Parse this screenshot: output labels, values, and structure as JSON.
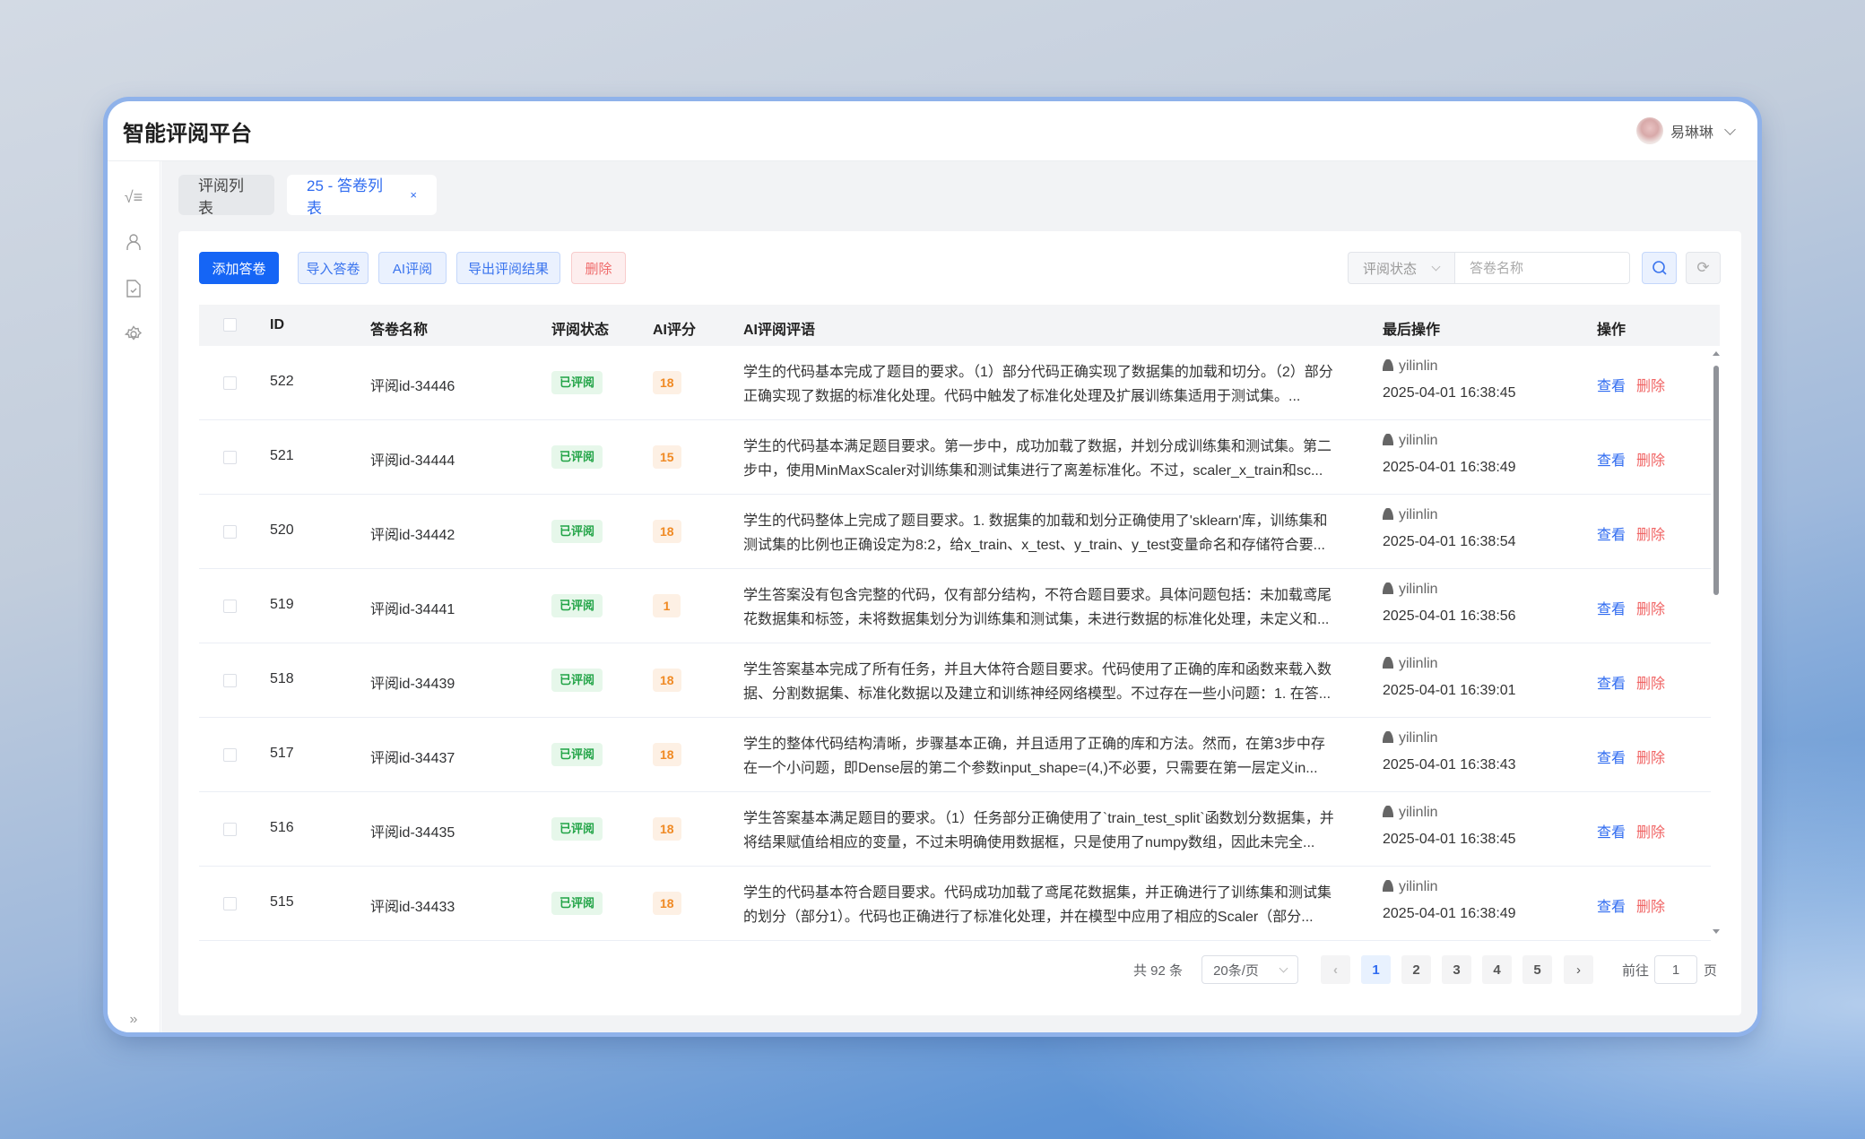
{
  "app": {
    "title": "智能评阅平台",
    "user": "易琳琳"
  },
  "tabs": [
    {
      "label": "评阅列表"
    },
    {
      "label": "25 - 答卷列表",
      "close": "×"
    }
  ],
  "toolbar": {
    "add": "添加答卷",
    "import": "导入答卷",
    "ai_review": "AI评阅",
    "export": "导出评阅结果",
    "delete": "删除"
  },
  "filter": {
    "status_placeholder": "评阅状态",
    "name_placeholder": "答卷名称"
  },
  "table": {
    "headers": {
      "id": "ID",
      "name": "答卷名称",
      "status": "评阅状态",
      "score": "AI评分",
      "comment": "AI评阅评语",
      "last_op": "最后操作",
      "ops": "操作"
    },
    "rows": [
      {
        "id": "522",
        "name": "评阅id-34446",
        "status": "已评阅",
        "score": "18",
        "comment": "学生的代码基本完成了题目的要求。（1）部分代码正确实现了数据集的加载和切分。（2）部分正确实现了数据的标准化处理。代码中触发了标准化处理及扩展训练集适用于测试集。...",
        "user": "yilinlin",
        "time": "2025-04-01 16:38:45",
        "view": "查看",
        "del": "删除"
      },
      {
        "id": "521",
        "name": "评阅id-34444",
        "status": "已评阅",
        "score": "15",
        "comment": "学生的代码基本满足题目要求。第一步中，成功加载了数据，并划分成训练集和测试集。第二步中，使用MinMaxScaler对训练集和测试集进行了离差标准化。不过，scaler_x_train和sc...",
        "user": "yilinlin",
        "time": "2025-04-01 16:38:49",
        "view": "查看",
        "del": "删除"
      },
      {
        "id": "520",
        "name": "评阅id-34442",
        "status": "已评阅",
        "score": "18",
        "comment": "学生的代码整体上完成了题目要求。1. 数据集的加载和划分正确使用了'sklearn'库，训练集和测试集的比例也正确设定为8:2，给x_train、x_test、y_train、y_test变量命名和存储符合要...",
        "user": "yilinlin",
        "time": "2025-04-01 16:38:54",
        "view": "查看",
        "del": "删除"
      },
      {
        "id": "519",
        "name": "评阅id-34441",
        "status": "已评阅",
        "score": "1",
        "comment": "学生答案没有包含完整的代码，仅有部分结构，不符合题目要求。具体问题包括：未加载鸢尾花数据集和标签，未将数据集划分为训练集和测试集，未进行数据的标准化处理，未定义和...",
        "user": "yilinlin",
        "time": "2025-04-01 16:38:56",
        "view": "查看",
        "del": "删除"
      },
      {
        "id": "518",
        "name": "评阅id-34439",
        "status": "已评阅",
        "score": "18",
        "comment": "学生答案基本完成了所有任务，并且大体符合题目要求。代码使用了正确的库和函数来载入数据、分割数据集、标准化数据以及建立和训练神经网络模型。不过存在一些小问题：1. 在答...",
        "user": "yilinlin",
        "time": "2025-04-01 16:39:01",
        "view": "查看",
        "del": "删除"
      },
      {
        "id": "517",
        "name": "评阅id-34437",
        "status": "已评阅",
        "score": "18",
        "comment": "学生的整体代码结构清晰，步骤基本正确，并且适用了正确的库和方法。然而，在第3步中存在一个小问题，即Dense层的第二个参数input_shape=(4,)不必要，只需要在第一层定义in...",
        "user": "yilinlin",
        "time": "2025-04-01 16:38:43",
        "view": "查看",
        "del": "删除"
      },
      {
        "id": "516",
        "name": "评阅id-34435",
        "status": "已评阅",
        "score": "18",
        "comment": "学生答案基本满足题目的要求。（1）任务部分正确使用了`train_test_split`函数划分数据集，并将结果赋值给相应的变量，不过未明确使用数据框，只是使用了numpy数组，因此未完全...",
        "user": "yilinlin",
        "time": "2025-04-01 16:38:45",
        "view": "查看",
        "del": "删除"
      },
      {
        "id": "515",
        "name": "评阅id-34433",
        "status": "已评阅",
        "score": "18",
        "comment": "学生的代码基本符合题目要求。代码成功加载了鸢尾花数据集，并正确进行了训练集和测试集的划分（部分1）。代码也正确进行了标准化处理，并在模型中应用了相应的Scaler（部分...",
        "user": "yilinlin",
        "time": "2025-04-01 16:38:49",
        "view": "查看",
        "del": "删除"
      }
    ]
  },
  "pagination": {
    "total": "共 92 条",
    "page_size": "20条/页",
    "prev": "‹",
    "next": "›",
    "pages": [
      "1",
      "2",
      "3",
      "4",
      "5"
    ],
    "current": "1",
    "goto_label": "前往",
    "goto_value": "1",
    "goto_suffix": "页"
  },
  "colors": {
    "primary": "#1565f5",
    "success": "#22a447",
    "warning": "#f08a24",
    "danger": "#f06464"
  }
}
